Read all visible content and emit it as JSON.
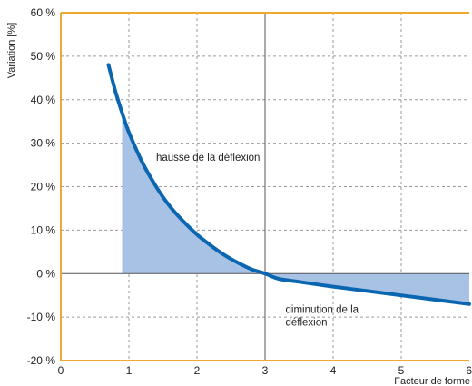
{
  "chart_data": {
    "type": "line",
    "title": "",
    "xlabel": "Facteur de forme",
    "ylabel": "Variation [%]",
    "xlim": [
      0,
      6
    ],
    "ylim": [
      -20,
      60
    ],
    "x_ticks": [
      0,
      1,
      2,
      3,
      4,
      5,
      6
    ],
    "x_tick_labels": [
      "0",
      "1",
      "2",
      "3",
      "4",
      "5",
      "6"
    ],
    "y_ticks": [
      -20,
      -10,
      0,
      10,
      20,
      30,
      40,
      50,
      60
    ],
    "y_tick_labels": [
      "-20 %",
      "-10 %",
      "0 %",
      "10 %",
      "20 %",
      "30 %",
      "40 %",
      "50 %",
      "60 %"
    ],
    "grid": true,
    "series": [
      {
        "x": [
          0.7,
          0.8,
          0.9,
          1.0,
          1.2,
          1.4,
          1.6,
          1.8,
          2.0,
          2.2,
          2.4,
          2.6,
          2.8,
          3.0,
          3.2,
          3.5,
          4.0,
          4.5,
          5.0,
          5.5,
          6.0
        ],
        "y": [
          48,
          42,
          37,
          32.5,
          25.5,
          20,
          15.5,
          12,
          9,
          6.5,
          4.3,
          2.5,
          1.0,
          0,
          -1.2,
          -1.9,
          -3.0,
          -4.0,
          -5.0,
          -6.0,
          -7.0
        ]
      }
    ],
    "fill_from_x": 0.9,
    "annotations": [
      {
        "lines": [
          "hausse de la déflexion"
        ],
        "x": 1.4,
        "y": 26
      },
      {
        "lines": [
          "diminution de la",
          "déflexion"
        ],
        "x": 3.3,
        "y": -9
      }
    ],
    "colors": {
      "line": "#0a66b0",
      "fill": "#a8c2e6",
      "axes": "#f0a830",
      "grid": "#9a9a9a",
      "zero_line": "#555555"
    }
  }
}
